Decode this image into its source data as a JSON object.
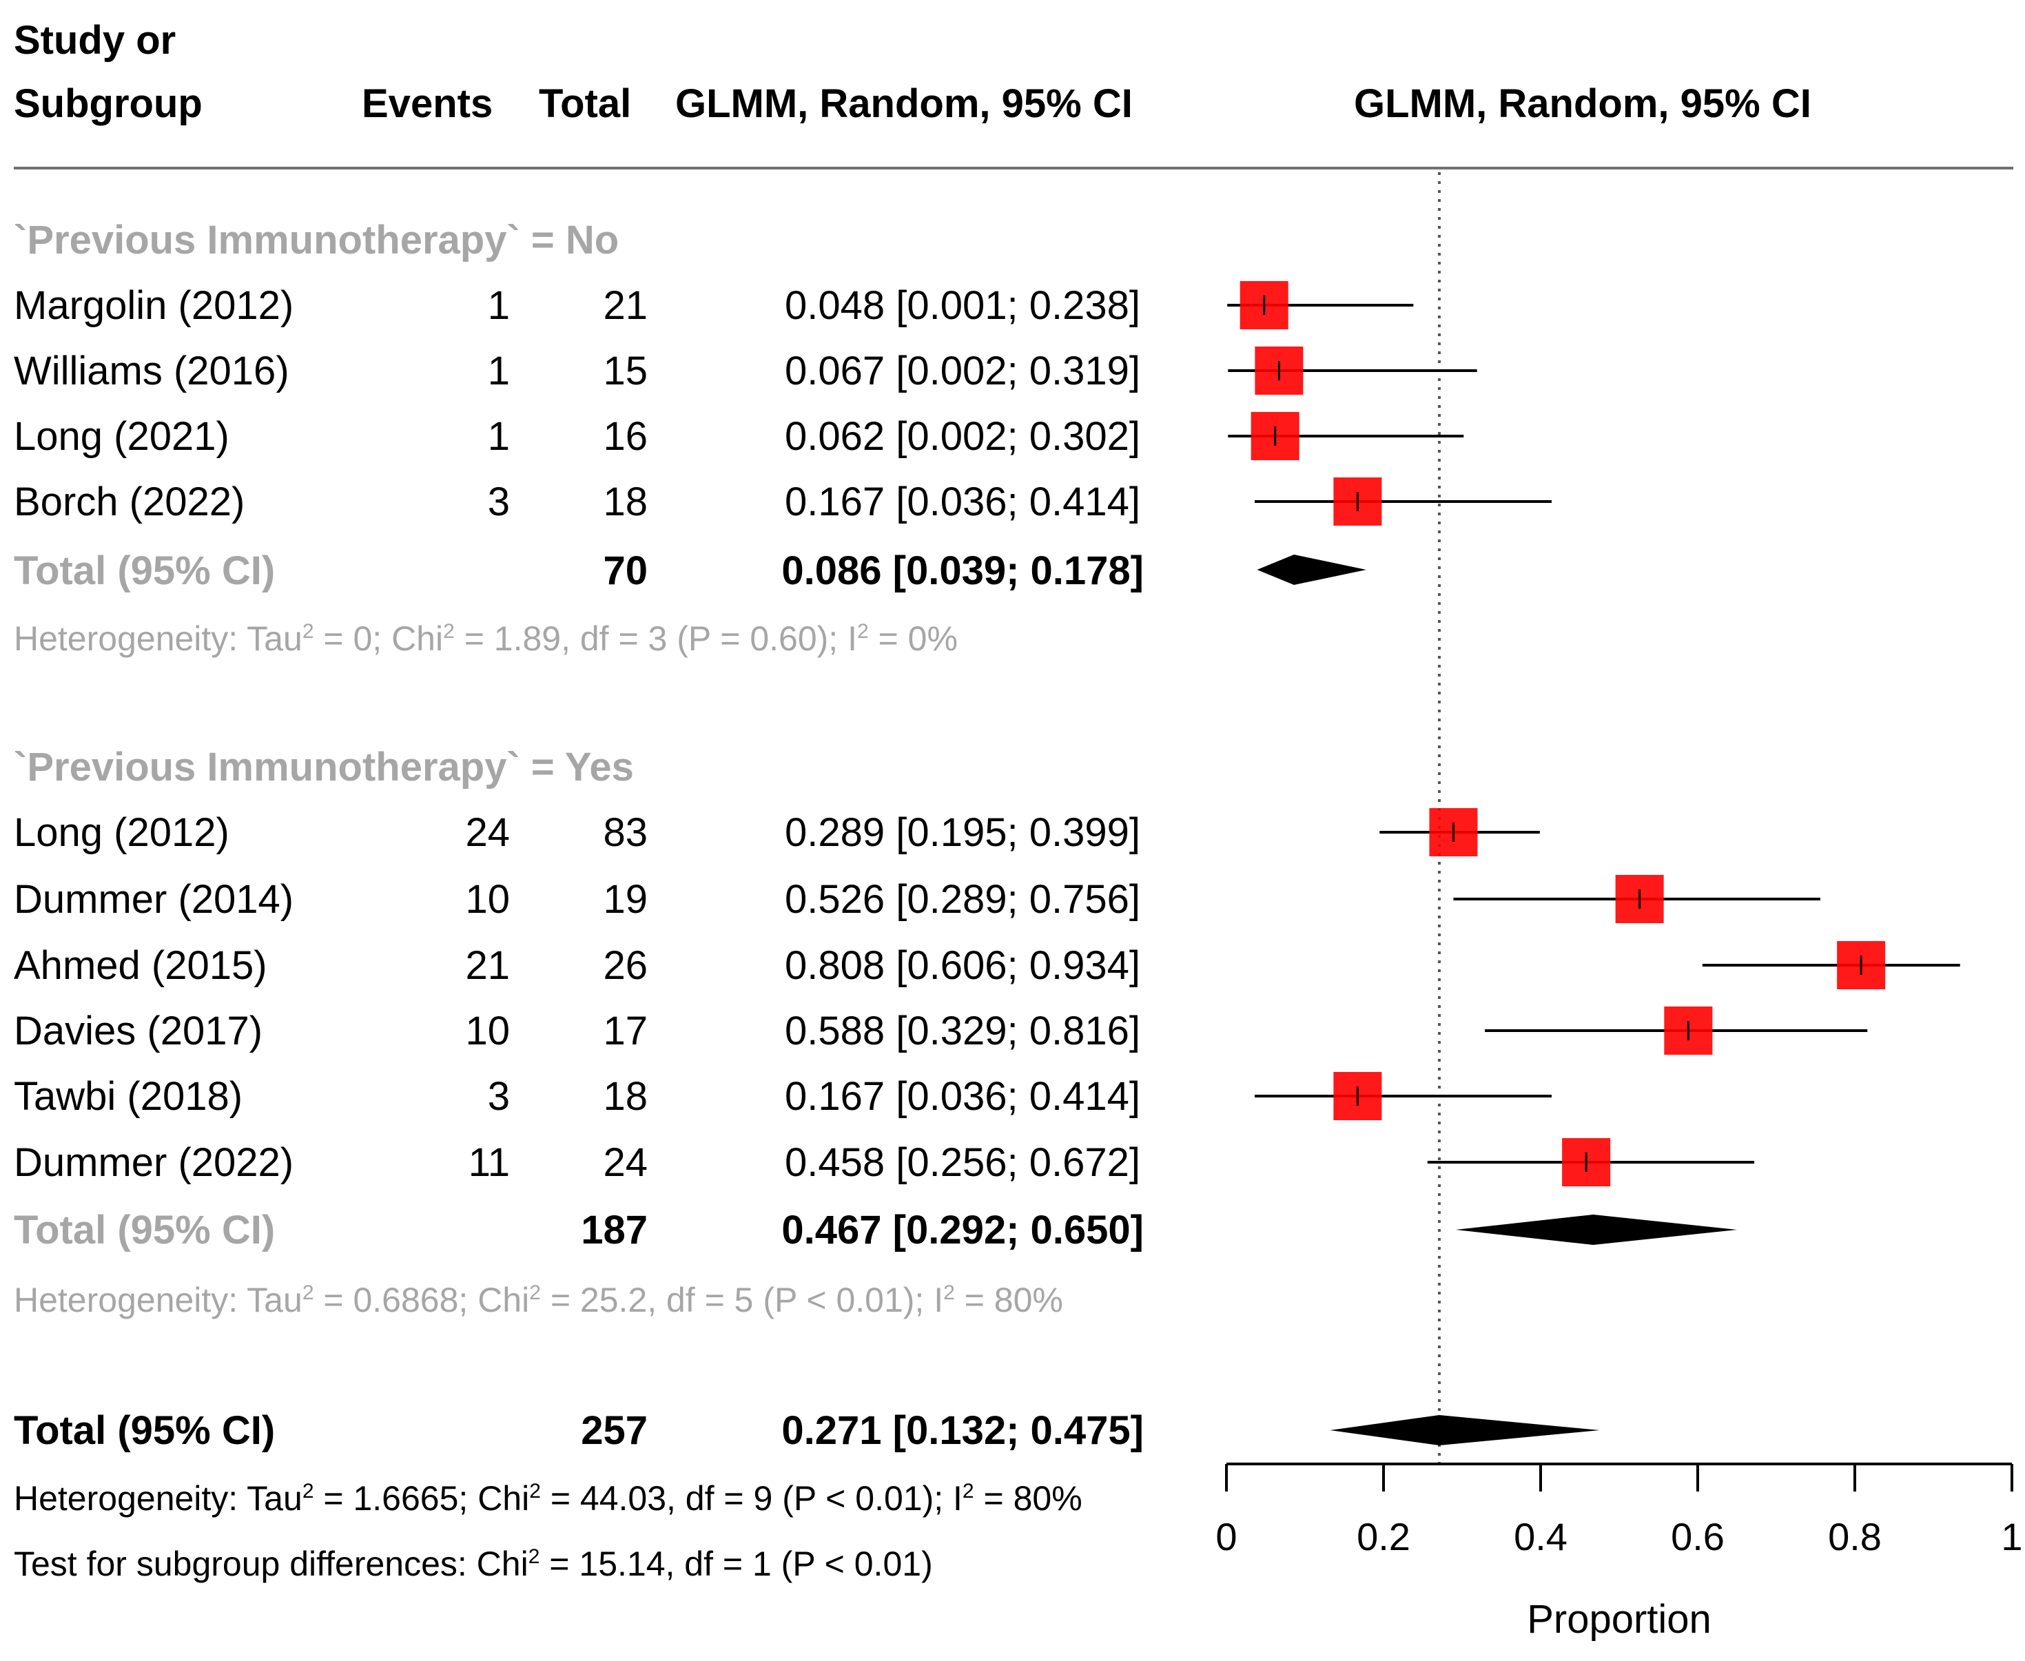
{
  "header": {
    "study_line1": "Study or",
    "study_line2": "Subgroup",
    "events": "Events",
    "total": "Total",
    "ci_col": "GLMM, Random, 95% CI",
    "plot_col": "GLMM, Random, 95% CI"
  },
  "groups": [
    {
      "label": "`Previous Immunotherapy` = No",
      "studies": [
        {
          "name": "Margolin (2012)",
          "events": "1",
          "total": "21",
          "ci": "0.048 [0.001; 0.238]"
        },
        {
          "name": "Williams (2016)",
          "events": "1",
          "total": "15",
          "ci": "0.067 [0.002; 0.319]"
        },
        {
          "name": "Long (2021)",
          "events": "1",
          "total": "16",
          "ci": "0.062 [0.002; 0.302]"
        },
        {
          "name": "Borch (2022)",
          "events": "3",
          "total": "18",
          "ci": "0.167 [0.036; 0.414]"
        }
      ],
      "total_label": "Total (95% CI)",
      "total_n": "70",
      "total_ci": "0.086 [0.039; 0.178]",
      "het_text": "Heterogeneity: Tau",
      "het_a": " = 0; Chi",
      "het_b": " = 1.89, df = 3 (P = 0.60); I",
      "het_c": " = 0%"
    },
    {
      "label": "`Previous Immunotherapy` = Yes",
      "studies": [
        {
          "name": "Long (2012)",
          "events": "24",
          "total": "83",
          "ci": "0.289 [0.195; 0.399]"
        },
        {
          "name": "Dummer (2014)",
          "events": "10",
          "total": "19",
          "ci": "0.526 [0.289; 0.756]"
        },
        {
          "name": "Ahmed (2015)",
          "events": "21",
          "total": "26",
          "ci": "0.808 [0.606; 0.934]"
        },
        {
          "name": "Davies (2017)",
          "events": "10",
          "total": "17",
          "ci": "0.588 [0.329; 0.816]"
        },
        {
          "name": "Tawbi (2018)",
          "events": "3",
          "total": "18",
          "ci": "0.167 [0.036; 0.414]"
        },
        {
          "name": "Dummer (2022)",
          "events": "11",
          "total": "24",
          "ci": "0.458 [0.256; 0.672]"
        }
      ],
      "total_label": "Total (95% CI)",
      "total_n": "187",
      "total_ci": "0.467 [0.292; 0.650]",
      "het_text": "Heterogeneity: Tau",
      "het_a": " = 0.6868; Chi",
      "het_b": " = 25.2, df = 5 (P < 0.01); I",
      "het_c": " = 80%"
    }
  ],
  "overall": {
    "label": "Total (95% CI)",
    "total_n": "257",
    "ci": "0.271 [0.132; 0.475]",
    "het_text": "Heterogeneity: Tau",
    "het_a": " = 1.6665; Chi",
    "het_b": " = 44.03, df = 9 (P < 0.01); I",
    "het_c": " = 80%",
    "test_text": "Test for subgroup differences: Chi",
    "test_b": " = 15.14, df = 1 (P < 0.01)",
    "sup2": "2"
  },
  "colors": {
    "square": "#ff0000",
    "ci_line": "#000000",
    "grey_text": "#a6a6a6",
    "diamond": "#000000"
  },
  "chart_data": {
    "type": "forest",
    "xlabel": "Proportion",
    "xlim": [
      0,
      1
    ],
    "ticks": [
      0,
      0.2,
      0.4,
      0.6,
      0.8,
      1
    ],
    "tick_labels": [
      "0",
      "0.2",
      "0.4",
      "0.6",
      "0.8",
      "1"
    ],
    "reference_line": 0.271,
    "studies": [
      {
        "name": "Margolin (2012)",
        "est": 0.048,
        "lo": 0.001,
        "hi": 0.238
      },
      {
        "name": "Williams (2016)",
        "est": 0.067,
        "lo": 0.002,
        "hi": 0.319
      },
      {
        "name": "Long (2021)",
        "est": 0.062,
        "lo": 0.002,
        "hi": 0.302
      },
      {
        "name": "Borch (2022)",
        "est": 0.167,
        "lo": 0.036,
        "hi": 0.414
      },
      {
        "name": "Long (2012)",
        "est": 0.289,
        "lo": 0.195,
        "hi": 0.399
      },
      {
        "name": "Dummer (2014)",
        "est": 0.526,
        "lo": 0.289,
        "hi": 0.756
      },
      {
        "name": "Ahmed (2015)",
        "est": 0.808,
        "lo": 0.606,
        "hi": 0.934
      },
      {
        "name": "Davies (2017)",
        "est": 0.588,
        "lo": 0.329,
        "hi": 0.816
      },
      {
        "name": "Tawbi (2018)",
        "est": 0.167,
        "lo": 0.036,
        "hi": 0.414
      },
      {
        "name": "Dummer (2022)",
        "est": 0.458,
        "lo": 0.256,
        "hi": 0.672
      }
    ],
    "summaries": [
      {
        "name": "No subgroup",
        "est": 0.086,
        "lo": 0.039,
        "hi": 0.178
      },
      {
        "name": "Yes subgroup",
        "est": 0.467,
        "lo": 0.292,
        "hi": 0.65
      },
      {
        "name": "Overall",
        "est": 0.271,
        "lo": 0.132,
        "hi": 0.475
      }
    ]
  }
}
